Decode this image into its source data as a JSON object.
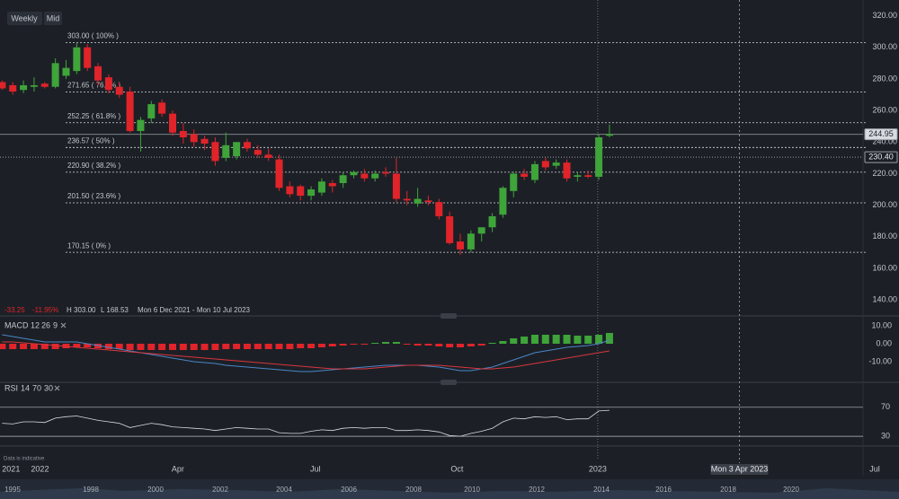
{
  "toolbar": {
    "interval": "Weekly",
    "price_type": "Mid"
  },
  "chart_data": {
    "type": "candlestick",
    "up_color": "#3fa43a",
    "down_color": "#e0242a",
    "open": [
      278,
      276,
      273,
      275,
      277,
      275,
      282,
      285,
      300,
      288,
      281,
      275,
      272,
      247,
      255,
      265,
      258,
      247,
      245,
      242,
      240,
      230,
      231,
      240,
      235,
      232,
      229,
      212,
      212,
      206,
      208,
      214,
      214,
      219,
      220,
      217,
      221,
      220,
      204,
      201,
      203,
      202,
      193,
      177,
      172,
      182,
      186,
      194,
      209,
      220,
      216,
      228,
      225,
      227,
      218,
      219,
      218,
      244
    ],
    "high": [
      279,
      278,
      279,
      281,
      278,
      293,
      292,
      303,
      302,
      290,
      283,
      278,
      275,
      256,
      266,
      267,
      260,
      252,
      248,
      244,
      243,
      246,
      240,
      242,
      238,
      236,
      232,
      215,
      213,
      212,
      217,
      216,
      221,
      222,
      223,
      222,
      224,
      230,
      209,
      211,
      206,
      204,
      196,
      182,
      184,
      186,
      195,
      212,
      221,
      223,
      228,
      230,
      229,
      229,
      221,
      222,
      245,
      251
    ],
    "low": [
      273,
      270,
      271,
      272,
      274,
      274,
      280,
      283,
      285,
      276,
      271,
      268,
      246,
      234,
      252,
      256,
      244,
      239,
      237,
      235,
      225,
      228,
      229,
      234,
      230,
      228,
      209,
      205,
      203,
      203,
      206,
      208,
      211,
      217,
      215,
      215,
      218,
      202,
      200,
      199,
      200,
      191,
      175,
      168.53,
      170,
      177,
      183,
      192,
      205,
      216,
      214,
      222,
      223,
      215,
      215,
      217,
      216,
      243
    ],
    "close": [
      274,
      272,
      276,
      276,
      275,
      290,
      287,
      300,
      287,
      279,
      273,
      270,
      247,
      254,
      264,
      258,
      246,
      243,
      240,
      239,
      228,
      238,
      240,
      236,
      232,
      230,
      211,
      207,
      206,
      210,
      215,
      212,
      219,
      221,
      217,
      220,
      220,
      204,
      203,
      204,
      202,
      193,
      176,
      172,
      182,
      186,
      193,
      211,
      220,
      218,
      226,
      224,
      227,
      217,
      219,
      218,
      243,
      245
    ],
    "ylim": [
      131,
      330
    ],
    "yticks": [
      {
        "value": 140,
        "label": "140.00"
      },
      {
        "value": 160,
        "label": "160.00"
      },
      {
        "value": 180,
        "label": "180.00"
      },
      {
        "value": 200,
        "label": "200.00"
      },
      {
        "value": 220,
        "label": "220.00"
      },
      {
        "value": 240,
        "label": "240.00"
      },
      {
        "value": 260,
        "label": "260.00"
      },
      {
        "value": 280,
        "label": "280.00"
      },
      {
        "value": 300,
        "label": "300.00"
      },
      {
        "value": 320,
        "label": "320.00"
      }
    ],
    "xlim": [
      -0.2,
      80.8
    ],
    "xticks": [
      {
        "value": 0.84,
        "label": "2021"
      },
      {
        "value": 3.55,
        "label": "2022"
      },
      {
        "value": 16.5,
        "label": "Apr"
      },
      {
        "value": 29.4,
        "label": "Jul"
      },
      {
        "value": 42.7,
        "label": "Oct"
      },
      {
        "value": 55.9,
        "label": "2023"
      },
      {
        "value": 81.9,
        "label": "Jul"
      }
    ],
    "cursor": {
      "value": 69.2,
      "label": "Mon 3 Apr 2023"
    },
    "fib_levels": [
      {
        "value": 303,
        "label": "303.00 ( 100% )"
      },
      {
        "value": 271.65,
        "label": "271.65 ( 76.4% )"
      },
      {
        "value": 252.25,
        "label": "252.25 ( 61.8% )"
      },
      {
        "value": 236.57,
        "label": "236.57 ( 50% )"
      },
      {
        "value": 220.9,
        "label": "220.90 ( 38.2% )"
      },
      {
        "value": 201.5,
        "label": "201.50 ( 23.6% )"
      },
      {
        "value": 170.15,
        "label": "170.15 ( 0% )"
      }
    ],
    "price_markers": [
      {
        "value": 244.95,
        "label": "244.95"
      },
      {
        "value": 230.4,
        "label": "230.40"
      }
    ],
    "stats": {
      "change": "-33.25",
      "change_pct": "-11.95%",
      "high": "H 303.00",
      "low": "L 168.53",
      "range": "Mon 6 Dec 2021 - Mon 10 Jul 2023"
    }
  },
  "macd": {
    "title": "MACD",
    "params": [
      12,
      26,
      9
    ],
    "histogram": [
      -3,
      -3,
      -3,
      -3,
      -3,
      -3,
      -2.5,
      -2,
      -2,
      -2.5,
      -3,
      -3,
      -3.5,
      -3.5,
      -3.5,
      -3.5,
      -3.5,
      -3.5,
      -3.5,
      -3.5,
      -3.5,
      -3,
      -3,
      -3,
      -3,
      -3,
      -3,
      -3,
      -2.5,
      -2.5,
      -2,
      -1.5,
      -1,
      -0.5,
      -0.5,
      0.5,
      1,
      1,
      -0.5,
      -1,
      -1,
      -1.5,
      -2,
      -2,
      -1.5,
      -1,
      0.5,
      1.5,
      3,
      4,
      5,
      5,
      5,
      5,
      4.5,
      4.5,
      5,
      6
    ],
    "macd": [
      5,
      4,
      3,
      2,
      1,
      1,
      1,
      1,
      0,
      -1,
      -2,
      -3,
      -4,
      -5,
      -6,
      -7,
      -8,
      -9,
      -10,
      -10.5,
      -11,
      -12,
      -12.5,
      -13,
      -13.5,
      -14,
      -14.5,
      -15,
      -15.5,
      -15.5,
      -15,
      -14.5,
      -14,
      -13.5,
      -13,
      -12.5,
      -12,
      -12,
      -12,
      -12,
      -12.5,
      -13,
      -14,
      -15,
      -15,
      -14,
      -13,
      -11,
      -9,
      -7,
      -5,
      -4,
      -3,
      -2,
      -1.5,
      -1,
      0,
      2
    ],
    "signal": [
      1,
      1,
      0.5,
      0,
      -0.5,
      -1,
      -1.5,
      -2,
      -2.5,
      -3,
      -3.5,
      -4,
      -4.5,
      -5,
      -5.5,
      -6,
      -6.5,
      -7,
      -7.5,
      -8,
      -8.5,
      -9,
      -9.5,
      -10,
      -10.5,
      -11,
      -11.5,
      -12,
      -12.5,
      -13,
      -13.5,
      -14,
      -14,
      -14,
      -14,
      -13.5,
      -13,
      -12.5,
      -12,
      -12,
      -12,
      -12,
      -12.5,
      -13,
      -13.5,
      -14,
      -14,
      -13.5,
      -13,
      -12,
      -11,
      -10,
      -9,
      -8,
      -7,
      -6,
      -5,
      -4
    ],
    "macd_color": "#4a86c8",
    "signal_color": "#d9363e",
    "ylim": [
      -21,
      14
    ],
    "yticks": [
      {
        "value": 10,
        "label": "10.00"
      },
      {
        "value": 0,
        "label": "0.00"
      },
      {
        "value": -10,
        "label": "-10.00"
      }
    ]
  },
  "rsi": {
    "title": "RSI",
    "params": [
      14,
      70,
      30
    ],
    "values": [
      48,
      47,
      50,
      50,
      49,
      55,
      57,
      58,
      55,
      52,
      50,
      48,
      42,
      45,
      48,
      46,
      43,
      42,
      41,
      40,
      38,
      40,
      42,
      41,
      40,
      40,
      35,
      34,
      34,
      37,
      39,
      38,
      41,
      42,
      41,
      42,
      42,
      38,
      38,
      39,
      38,
      36,
      31,
      30,
      34,
      37,
      41,
      50,
      55,
      54,
      57,
      56,
      57,
      53,
      54,
      54,
      65,
      66
    ],
    "color": "#d8dbe0",
    "ylim": [
      19,
      102
    ],
    "yticks": [
      70,
      30
    ]
  },
  "navigator": {
    "years": [
      "1995",
      "1998",
      "2000",
      "2002",
      "2004",
      "2006",
      "2008",
      "2010",
      "2012",
      "2014",
      "2016",
      "2018",
      "2020"
    ]
  },
  "disclaimer": "Data is indicative"
}
